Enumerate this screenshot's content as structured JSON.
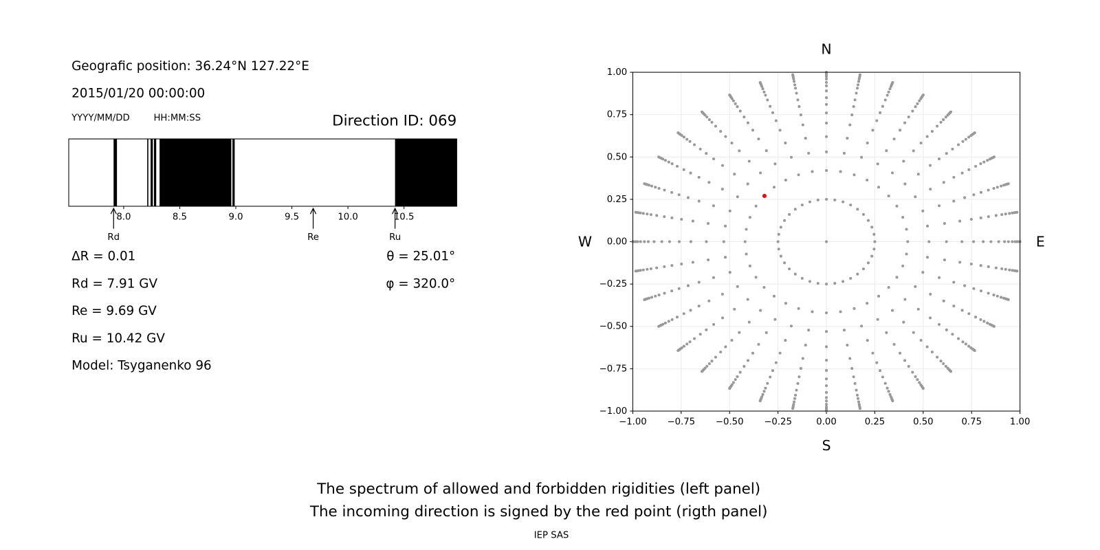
{
  "header": {
    "position": "Geografic position: 36.24°N 127.22°E",
    "datetime": "2015/01/20 00:00:00",
    "date_format": "YYYY/MM/DD",
    "time_format": "HH:MM:SS",
    "direction": "Direction ID: 069"
  },
  "chart_data": [
    {
      "type": "spectrum",
      "xlim": [
        7.51,
        10.97
      ],
      "xticks": [
        {
          "value": 8.0,
          "label": "8.0"
        },
        {
          "value": 8.5,
          "label": "8.5"
        },
        {
          "value": 9.0,
          "label": "9.0"
        },
        {
          "value": 9.5,
          "label": "9.5"
        },
        {
          "value": 10.0,
          "label": "10.0"
        },
        {
          "value": 10.5,
          "label": "10.5"
        }
      ],
      "intervals": [
        [
          7.91,
          7.94
        ],
        [
          8.21,
          8.22
        ],
        [
          8.24,
          8.26
        ],
        [
          8.27,
          8.29
        ],
        [
          8.32,
          8.96
        ],
        [
          8.97,
          8.99
        ],
        [
          10.42,
          10.97
        ]
      ],
      "color": "#000000",
      "annotations": [
        {
          "label": "Rd",
          "x": 7.91
        },
        {
          "label": "Re",
          "x": 9.69
        },
        {
          "label": "Ru",
          "x": 10.42
        }
      ]
    },
    {
      "type": "scatter",
      "xlim": [
        -1,
        1
      ],
      "ylim": [
        -1,
        1
      ],
      "xticks": [
        {
          "value": -1,
          "label": "−1.00"
        },
        {
          "value": -0.75,
          "label": "−0.75"
        },
        {
          "value": -0.5,
          "label": "−0.50"
        },
        {
          "value": -0.25,
          "label": "−0.25"
        },
        {
          "value": 0,
          "label": "0.00"
        },
        {
          "value": 0.25,
          "label": "0.25"
        },
        {
          "value": 0.5,
          "label": "0.50"
        },
        {
          "value": 0.75,
          "label": "0.75"
        },
        {
          "value": 1,
          "label": "1.00"
        }
      ],
      "yticks": [
        {
          "value": -1,
          "label": "−1.00"
        },
        {
          "value": -0.75,
          "label": "−0.75"
        },
        {
          "value": -0.5,
          "label": "−0.50"
        },
        {
          "value": -0.25,
          "label": "−0.25"
        },
        {
          "value": 0,
          "label": "0.00"
        },
        {
          "value": 0.25,
          "label": "0.25"
        },
        {
          "value": 0.5,
          "label": "0.50"
        },
        {
          "value": 0.75,
          "label": "0.75"
        },
        {
          "value": 1,
          "label": "1.00"
        }
      ],
      "grid": true,
      "compass": {
        "north": "N",
        "south": "S",
        "west": "W",
        "east": "E"
      },
      "grid_points": {
        "color": "#999999",
        "center": [
          0,
          0
        ],
        "rings": [
          0.25,
          0.42,
          0.53,
          0.62,
          0.7,
          0.76,
          0.81,
          0.85,
          0.89,
          0.92,
          0.94,
          0.96,
          0.975,
          0.985,
          0.993,
          1.0
        ],
        "azimuths": [
          0,
          10,
          20,
          30,
          40,
          50,
          60,
          70,
          80,
          90,
          100,
          110,
          120,
          130,
          140,
          150,
          160,
          170,
          180,
          190,
          200,
          210,
          220,
          230,
          240,
          250,
          260,
          270,
          280,
          290,
          300,
          310,
          320,
          330,
          340,
          350
        ]
      },
      "series": [
        {
          "color": "#ff0000",
          "x": [
            -0.32
          ],
          "y": [
            0.27
          ]
        }
      ]
    }
  ],
  "results": {
    "left": [
      "ΔR = 0.01",
      "Rd = 7.91 GV",
      "Re = 9.69 GV",
      "Ru = 10.42 GV",
      "Model: Tsyganenko 96"
    ],
    "right": [
      "θ = 25.01°",
      "φ = 320.0°"
    ]
  },
  "caption": [
    "The spectrum of allowed and forbidden rigidities (left panel)",
    "The incoming direction is signed by the red point (rigth panel)"
  ],
  "credit": "IEP SAS"
}
